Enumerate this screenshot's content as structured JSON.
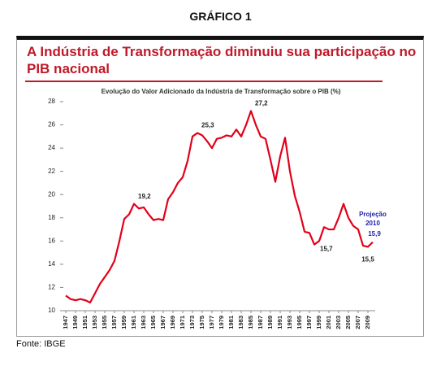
{
  "header": "GRÁFICO 1",
  "slide_title": "A Indústria de Transformação diminuiu sua participação no PIB nacional",
  "source": "Fonte: IBGE",
  "chart_data": {
    "type": "line",
    "title": "Evolução do Valor Adicionado da Indústria de Transformação sobre o PIB (%)",
    "x": [
      1947,
      1948,
      1949,
      1950,
      1951,
      1952,
      1953,
      1954,
      1955,
      1956,
      1957,
      1958,
      1959,
      1960,
      1961,
      1962,
      1963,
      1964,
      1965,
      1966,
      1967,
      1968,
      1969,
      1970,
      1971,
      1972,
      1973,
      1974,
      1975,
      1976,
      1977,
      1978,
      1979,
      1980,
      1981,
      1982,
      1983,
      1984,
      1985,
      1986,
      1987,
      1988,
      1989,
      1990,
      1991,
      1992,
      1993,
      1994,
      1995,
      1996,
      1997,
      1998,
      1999,
      2000,
      2001,
      2002,
      2003,
      2004,
      2005,
      2006,
      2007,
      2008,
      2009,
      2010
    ],
    "values": [
      11.3,
      11.0,
      10.9,
      11.0,
      10.9,
      10.7,
      11.5,
      12.3,
      12.9,
      13.5,
      14.3,
      16.0,
      17.9,
      18.3,
      19.2,
      18.8,
      18.9,
      18.3,
      17.8,
      17.9,
      17.8,
      19.6,
      20.2,
      21.0,
      21.5,
      22.9,
      25.0,
      25.3,
      25.1,
      24.6,
      24.0,
      24.8,
      24.9,
      25.1,
      25.0,
      25.6,
      25.0,
      26.0,
      27.2,
      26.0,
      25.0,
      24.8,
      23.0,
      21.1,
      23.3,
      24.9,
      22.0,
      19.9,
      18.5,
      16.8,
      16.7,
      15.7,
      16.0,
      17.2,
      17.0,
      17.0,
      18.0,
      19.2,
      18.0,
      17.3,
      17.0,
      15.6,
      15.5,
      15.9
    ],
    "value_labels": [
      null,
      null,
      null,
      null,
      null,
      null,
      null,
      null,
      null,
      null,
      null,
      null,
      null,
      null,
      "19,2",
      null,
      null,
      null,
      null,
      null,
      null,
      null,
      null,
      null,
      null,
      null,
      null,
      "25,3",
      null,
      null,
      null,
      null,
      null,
      null,
      null,
      null,
      null,
      null,
      "27,2",
      null,
      null,
      null,
      null,
      null,
      null,
      null,
      null,
      null,
      null,
      null,
      null,
      "15,7",
      null,
      null,
      null,
      null,
      null,
      null,
      null,
      null,
      null,
      null,
      "15,5",
      "15,9"
    ],
    "annotations": [
      "Projeção",
      "2010"
    ],
    "color": "#e2001a",
    "projection_color": "#1f1fa8",
    "xlim": [
      1946.5,
      2010.5
    ],
    "xticks": [
      1947,
      1949,
      1951,
      1953,
      1955,
      1957,
      1959,
      1961,
      1963,
      1965,
      1967,
      1969,
      1971,
      1973,
      1975,
      1977,
      1979,
      1981,
      1983,
      1985,
      1987,
      1989,
      1991,
      1993,
      1995,
      1997,
      1999,
      2001,
      2003,
      2005,
      2007,
      2009
    ],
    "ylim": [
      10,
      28
    ],
    "yticks": [
      10,
      12,
      14,
      16,
      18,
      20,
      22,
      24,
      26,
      28
    ],
    "grid": false
  }
}
